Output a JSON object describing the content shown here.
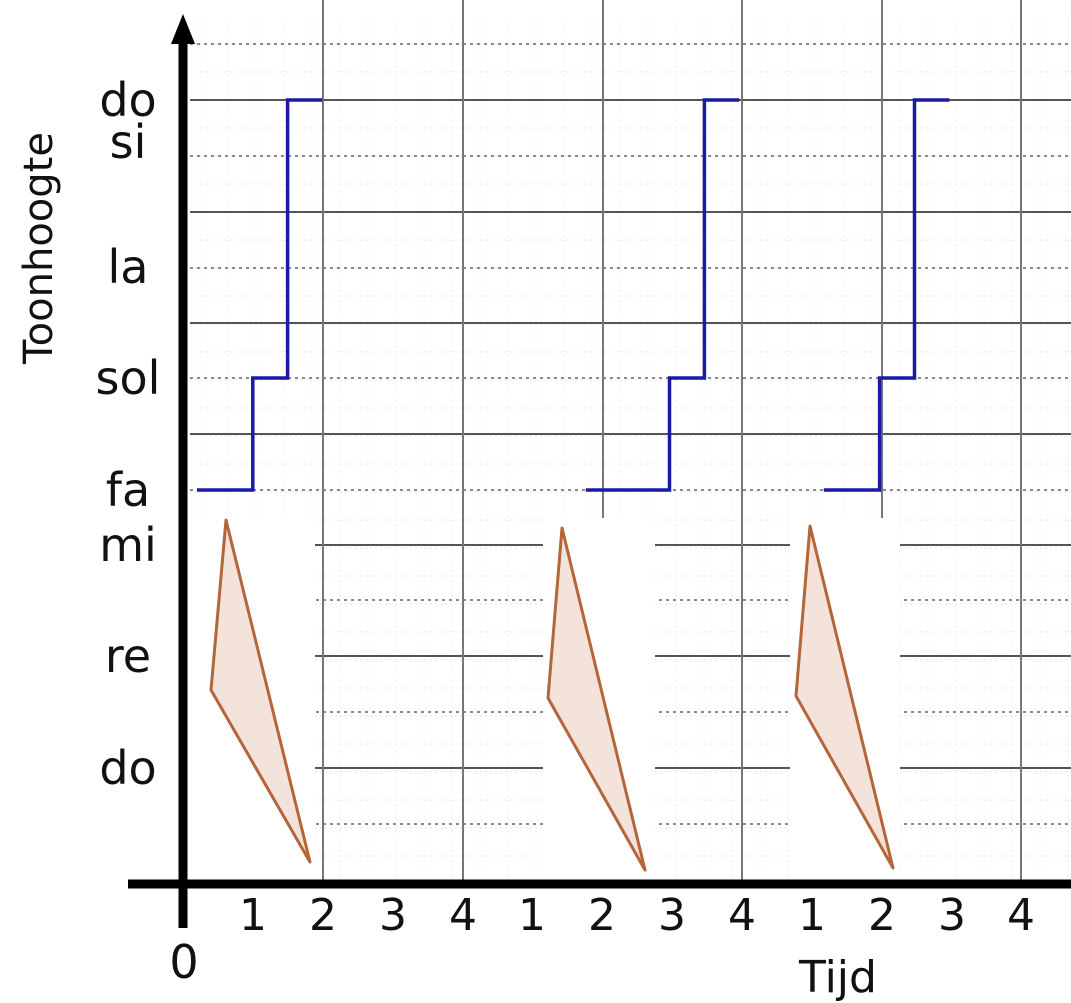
{
  "chart_data": {
    "type": "line",
    "title": "",
    "xlabel": "Tijd",
    "ylabel": "Toonhoogte",
    "origin_label": "0",
    "x_tick_labels": [
      "1",
      "2",
      "3",
      "4",
      "1",
      "2",
      "3",
      "4",
      "1",
      "2",
      "3",
      "4"
    ],
    "y_tick_labels": [
      "do",
      "re",
      "mi",
      "fa",
      "sol",
      "la",
      "si",
      "do"
    ],
    "grid": true,
    "series_color": "#1a1aa6",
    "shape_fill": "#f3e3da",
    "shape_stroke": "#b5653a",
    "series": [
      {
        "points": [
          {
            "x": 0.2,
            "y": "fa"
          },
          {
            "x": 1.0,
            "y": "fa"
          },
          {
            "x": 1.0,
            "y": "sol"
          },
          {
            "x": 1.5,
            "y": "sol"
          },
          {
            "x": 1.5,
            "y": "do"
          },
          {
            "x": 2.0,
            "y": "do"
          }
        ]
      },
      {
        "points": [
          {
            "x": 0.8,
            "y": "fa"
          },
          {
            "x": 2.0,
            "y": "fa"
          },
          {
            "x": 2.0,
            "y": "sol"
          },
          {
            "x": 2.5,
            "y": "sol"
          },
          {
            "x": 2.5,
            "y": "do"
          },
          {
            "x": 3.0,
            "y": "do"
          }
        ]
      },
      {
        "points": [
          {
            "x": 0.7,
            "y": "fa"
          },
          {
            "x": 1.5,
            "y": "fa"
          },
          {
            "x": 1.5,
            "y": "sol"
          },
          {
            "x": 2.0,
            "y": "sol"
          },
          {
            "x": 2.0,
            "y": "do"
          },
          {
            "x": 2.5,
            "y": "do"
          }
        ]
      }
    ]
  }
}
